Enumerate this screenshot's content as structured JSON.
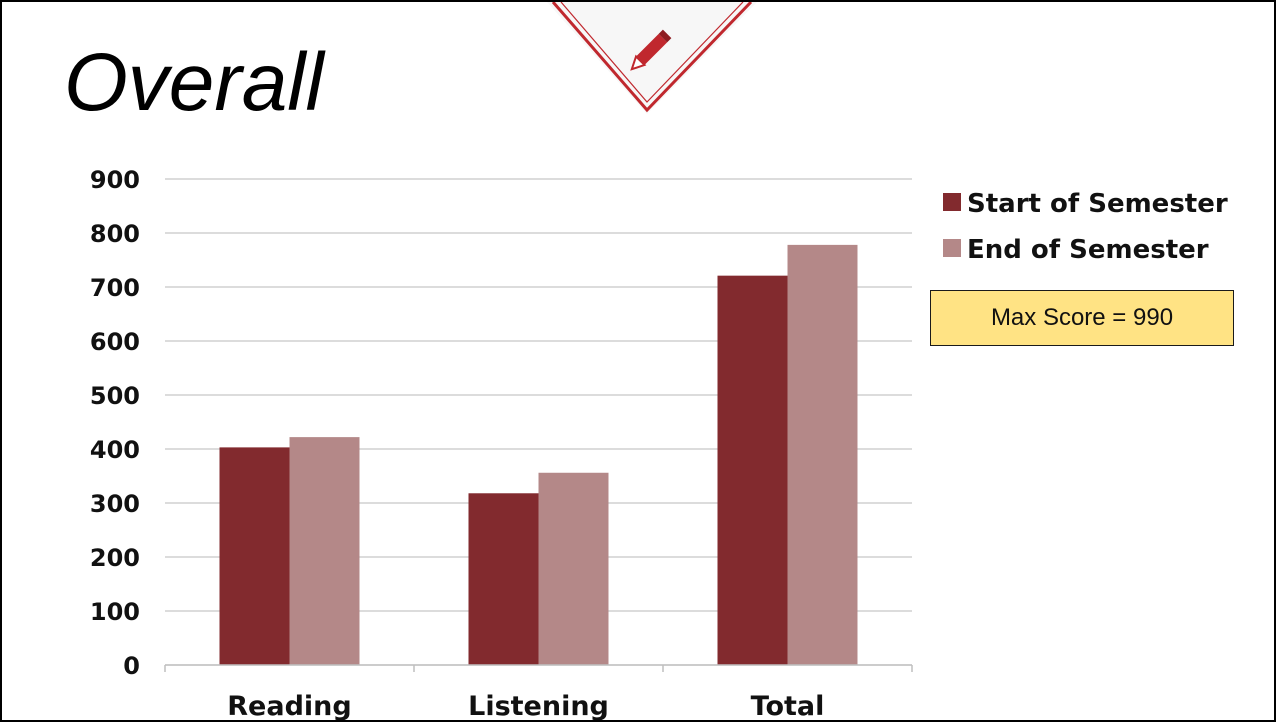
{
  "slide": {
    "title": "Overall",
    "note": "Max Score = 990"
  },
  "colors": {
    "start": "#822a2e",
    "end": "#b48888",
    "accent": "#c0282e",
    "gridline": "#c8c8c8",
    "note_fill": "#ffe384"
  },
  "icons": {
    "banner": "pencil-icon"
  },
  "chart_data": {
    "type": "bar",
    "categories": [
      "Reading",
      "Listening",
      "Total"
    ],
    "series": [
      {
        "name": "Start of Semester",
        "values": [
          403,
          318,
          721
        ]
      },
      {
        "name": "End of Semester",
        "values": [
          422,
          356,
          778
        ]
      }
    ],
    "ylim": [
      0,
      900
    ],
    "yticks": [
      0,
      100,
      200,
      300,
      400,
      500,
      600,
      700,
      800,
      900
    ],
    "grid": true,
    "legend": "top-right"
  }
}
